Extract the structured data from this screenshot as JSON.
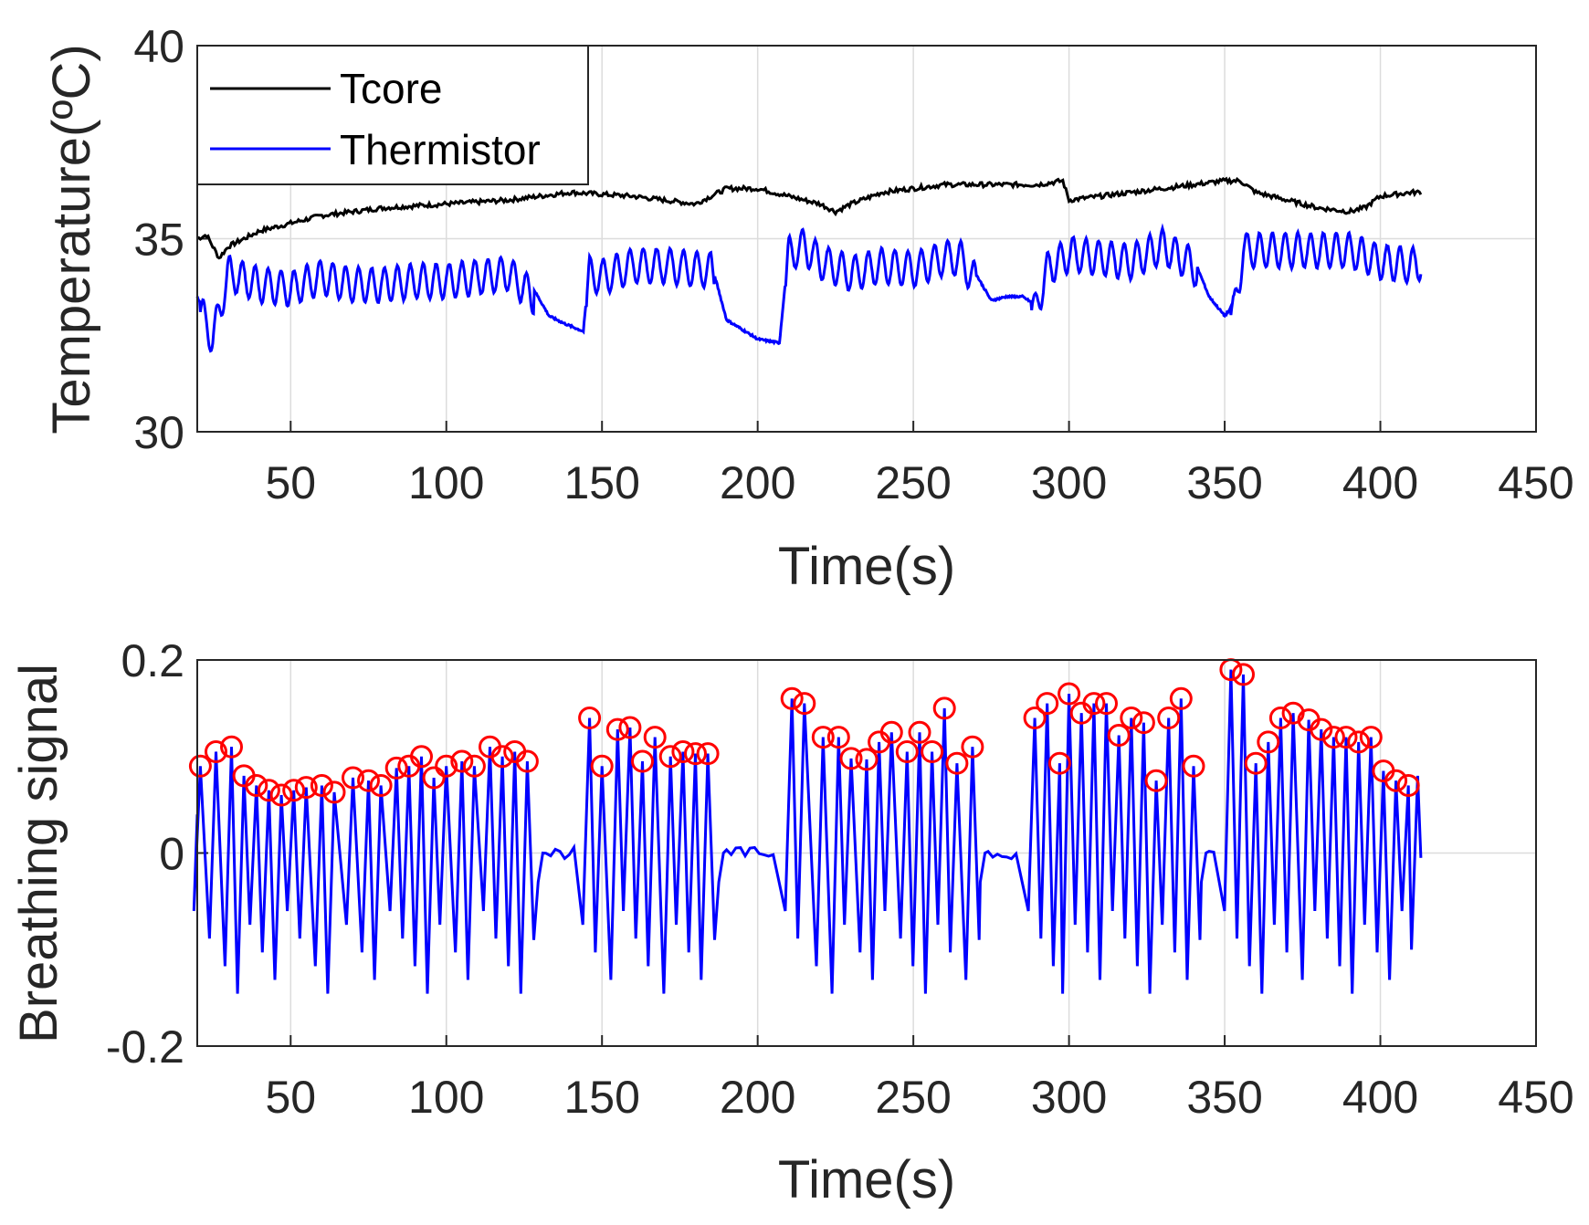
{
  "colors": {
    "tcore": "#000000",
    "thermistor": "#0000ff",
    "breathing": "#0000ff",
    "peaks": "#ff0000",
    "grid": "#dcdcdc",
    "axes": "#262626"
  },
  "chart_data": [
    {
      "type": "line",
      "title": "",
      "xlabel": "Time(s)",
      "ylabel": "Temperature(ºC)",
      "xlim": [
        20,
        450
      ],
      "ylim": [
        30,
        40
      ],
      "xticks": [
        "50",
        "100",
        "150",
        "200",
        "250",
        "300",
        "350",
        "400",
        "450"
      ],
      "yticks": [
        "30",
        "35",
        "40"
      ],
      "grid": true,
      "legend": {
        "placement": "top-left",
        "entries": [
          "Tcore",
          "Thermistor"
        ]
      },
      "series": [
        {
          "name": "Tcore",
          "x": [
            20,
            23,
            25,
            27,
            30,
            35,
            40,
            50,
            60,
            80,
            100,
            120,
            130,
            140,
            160,
            180,
            190,
            200,
            210,
            220,
            225,
            230,
            240,
            250,
            260,
            270,
            280,
            290,
            298,
            300,
            310,
            320,
            330,
            340,
            350,
            355,
            360,
            370,
            380,
            390,
            395,
            400,
            410,
            413
          ],
          "y": [
            35.0,
            35.1,
            34.8,
            34.5,
            34.8,
            35.0,
            35.2,
            35.4,
            35.6,
            35.8,
            35.9,
            36.0,
            36.1,
            36.2,
            36.1,
            35.9,
            36.3,
            36.3,
            36.1,
            35.9,
            35.7,
            35.9,
            36.2,
            36.3,
            36.4,
            36.4,
            36.4,
            36.4,
            36.5,
            36.0,
            36.1,
            36.2,
            36.3,
            36.4,
            36.5,
            36.5,
            36.2,
            36.0,
            35.8,
            35.7,
            35.8,
            36.1,
            36.2,
            36.2
          ]
        },
        {
          "name": "Thermistor",
          "note_segments": "breathing oscillation amplitude per segment",
          "x": [
            20,
            25,
            30,
            40,
            50,
            60,
            70,
            80,
            90,
            100,
            110,
            120,
            128,
            133,
            138,
            144,
            146,
            150,
            160,
            170,
            180,
            185,
            190,
            200,
            207,
            210,
            215,
            220,
            230,
            240,
            250,
            260,
            265,
            270,
            275,
            280,
            285,
            289,
            293,
            300,
            310,
            320,
            330,
            340,
            345,
            350,
            353,
            356,
            360,
            370,
            380,
            390,
            400,
            410,
            413
          ],
          "y": [
            33.5,
            32.6,
            34.3,
            34.0,
            33.9,
            34.2,
            34.0,
            34.0,
            34.1,
            34.1,
            34.2,
            34.3,
            33.7,
            33.0,
            32.8,
            32.6,
            34.3,
            34.2,
            34.5,
            34.5,
            34.4,
            34.4,
            32.9,
            32.4,
            32.3,
            34.8,
            35.0,
            34.6,
            34.3,
            34.5,
            34.4,
            34.7,
            34.7,
            34.1,
            33.4,
            33.5,
            33.5,
            33.3,
            34.4,
            34.8,
            34.7,
            34.6,
            35.0,
            34.5,
            33.5,
            33.0,
            33.3,
            34.9,
            34.9,
            34.9,
            34.9,
            34.9,
            34.6,
            34.5,
            34.6
          ]
        }
      ]
    },
    {
      "type": "line",
      "title": "",
      "xlabel": "Time(s)",
      "ylabel": "Breathing signal",
      "xlim": [
        20,
        450
      ],
      "ylim": [
        -0.2,
        0.2
      ],
      "xticks": [
        "50",
        "100",
        "150",
        "200",
        "250",
        "300",
        "350",
        "400",
        "450"
      ],
      "yticks": [
        "-0.2",
        "0",
        "0.2"
      ],
      "grid": true,
      "series": [
        {
          "name": "",
          "role": "breathing signal"
        },
        {
          "name": "",
          "role": "detected peaks (red circles)",
          "x": [
            21,
            26,
            31,
            35,
            39,
            43,
            47,
            51,
            55,
            60,
            64,
            70,
            75,
            79,
            84,
            88,
            92,
            96,
            100,
            105,
            109,
            114,
            118,
            122,
            126,
            146,
            150,
            155,
            159,
            163,
            167,
            172,
            176,
            180,
            184,
            211,
            215,
            221,
            226,
            230,
            235,
            239,
            243,
            248,
            252,
            256,
            260,
            264,
            269,
            289,
            293,
            297,
            300,
            304,
            308,
            312,
            316,
            320,
            324,
            328,
            332,
            336,
            340,
            352,
            356,
            360,
            364,
            368,
            372,
            377,
            381,
            385,
            389,
            393,
            397,
            401,
            405,
            409
          ],
          "y": [
            0.09,
            0.105,
            0.11,
            0.08,
            0.07,
            0.065,
            0.06,
            0.065,
            0.068,
            0.07,
            0.063,
            0.078,
            0.075,
            0.07,
            0.088,
            0.09,
            0.1,
            0.078,
            0.09,
            0.095,
            0.09,
            0.11,
            0.1,
            0.105,
            0.095,
            0.14,
            0.09,
            0.128,
            0.13,
            0.095,
            0.12,
            0.1,
            0.105,
            0.103,
            0.103,
            0.16,
            0.155,
            0.12,
            0.12,
            0.098,
            0.097,
            0.115,
            0.125,
            0.105,
            0.125,
            0.105,
            0.15,
            0.093,
            0.11,
            0.14,
            0.155,
            0.093,
            0.165,
            0.145,
            0.155,
            0.155,
            0.122,
            0.14,
            0.135,
            0.075,
            0.14,
            0.16,
            0.09,
            0.19,
            0.185,
            0.093,
            0.115,
            0.14,
            0.145,
            0.138,
            0.128,
            0.12,
            0.12,
            0.115,
            0.12,
            0.085,
            0.075,
            0.07
          ]
        }
      ]
    }
  ]
}
